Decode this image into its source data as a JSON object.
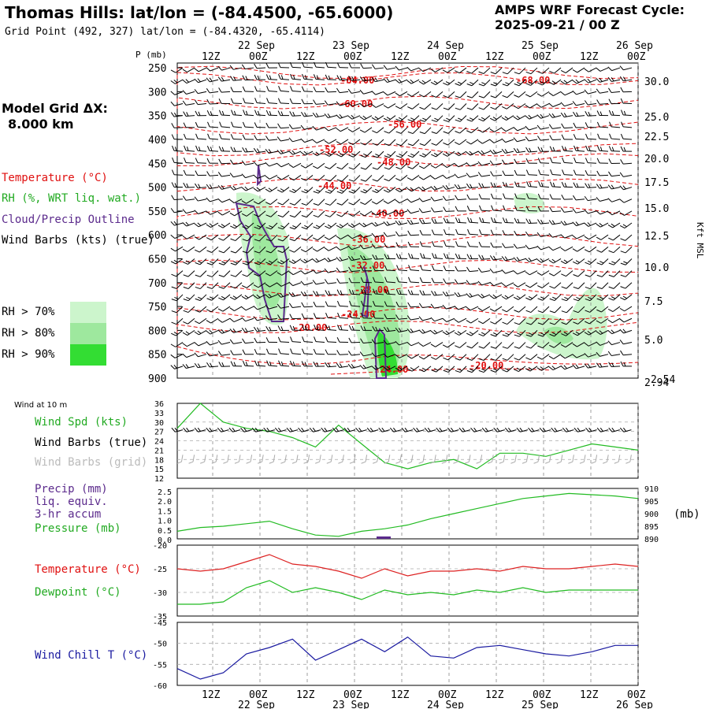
{
  "header": {
    "station_title": "Thomas Hills:  lat/lon = (-84.4500, -65.6000)",
    "grid_point": "Grid Point (492, 327) lat/lon = (-84.4320, -65.4114)",
    "cycle_label": "AMPS WRF Forecast Cycle:",
    "cycle_value": "2025-09-21 / 00  Z"
  },
  "model_grid": {
    "label": "Model Grid ΔX:",
    "value": "8.000 km"
  },
  "legend": {
    "temperature": "Temperature (°C)",
    "rh": "RH (%, WRT liq. wat.)",
    "cloud": "Cloud/Precip Outline",
    "wind_barbs": "Wind Barbs (kts) (true)",
    "rh70": "RH > 70%",
    "rh80": "RH > 80%",
    "rh90": "RH > 90%"
  },
  "colors": {
    "temp": "#e01010",
    "rh70": "#ccf5cc",
    "rh80": "#9ee89e",
    "rh90": "#33dd33",
    "cloud": "#5b2a8c",
    "green": "#22bb22",
    "wind_chill": "#1a1aa0",
    "grid_barb": "#aaaaaa"
  },
  "time_axis": {
    "top_labels": [
      "12Z",
      "00Z",
      "12Z",
      "00Z",
      "12Z",
      "00Z",
      "12Z",
      "00Z",
      "12Z",
      "00Z"
    ],
    "day_labels": [
      "22 Sep",
      "23 Sep",
      "24 Sep",
      "25 Sep",
      "26 Sep"
    ]
  },
  "chart_data": [
    {
      "type": "contour",
      "name": "upper-air time-height cross section",
      "ylabel": "P (mb)",
      "right_label": "Kft MSL",
      "pressure_ticks": [
        250,
        300,
        350,
        400,
        450,
        500,
        550,
        600,
        650,
        700,
        750,
        800,
        850,
        900
      ],
      "kft_ticks": [
        "30.0",
        "25.0",
        "22.5",
        "20.0",
        "17.5",
        "15.0",
        "12.5",
        "10.0",
        "7.5",
        "5.0",
        "2.94"
      ],
      "temp_contours": [
        "-68.00",
        "-64.00",
        "-60.00",
        "-56.00",
        "-52.00",
        "-48.00",
        "-44.00",
        "-40.00",
        "-36.00",
        "-32.00",
        "-28.00",
        "-24.00",
        "-20.00",
        "-24.00",
        "-20.00"
      ]
    },
    {
      "type": "line",
      "name": "Wind at 10 m",
      "title": "Wind at 10 m",
      "series_labels": {
        "speed": "Wind Spd (kts)",
        "barbs_true": "Wind Barbs (true)",
        "barbs_grid": "Wind Barbs (grid)"
      },
      "y_ticks": [
        36,
        33,
        30,
        27,
        24,
        21,
        18,
        15,
        12
      ],
      "ylim": [
        12,
        36
      ],
      "x_hours": [
        0,
        6,
        12,
        18,
        24,
        30,
        36,
        42,
        48,
        54,
        60,
        66,
        72,
        78,
        84,
        90,
        96,
        102,
        108,
        114,
        120
      ],
      "wind_speed": [
        28,
        36,
        30,
        28,
        27,
        25,
        22,
        29,
        23,
        17,
        15,
        17,
        18,
        15,
        20,
        20,
        19,
        21,
        23,
        22,
        21
      ]
    },
    {
      "type": "line",
      "name": "Precip and pressure",
      "series_labels": {
        "precip": "Precip (mm)",
        "liq": "liq. equiv.",
        "accum": "3-hr accum",
        "pressure": "Pressure (mb)"
      },
      "right_unit": "(mb)",
      "precip_ticks": [
        "2.5",
        "2.0",
        "1.5",
        "1.0",
        "0.5",
        "0.0"
      ],
      "pressure_ticks": [
        910,
        905,
        900,
        895,
        890
      ],
      "ylim_pressure": [
        890,
        910
      ],
      "x_hours": [
        0,
        6,
        12,
        18,
        24,
        30,
        36,
        42,
        48,
        54,
        60,
        66,
        72,
        78,
        84,
        90,
        96,
        102,
        108,
        114,
        120
      ],
      "pressure": [
        893,
        894.5,
        895,
        896,
        897,
        894,
        891.5,
        891,
        893,
        894,
        895.5,
        898,
        900,
        902,
        904,
        906,
        907,
        908,
        907.5,
        907,
        906
      ]
    },
    {
      "type": "line",
      "name": "Temperature and dewpoint",
      "series_labels": {
        "temperature": "Temperature (°C)",
        "dewpoint": "Dewpoint (°C)"
      },
      "y_ticks": [
        "-20",
        "-25",
        "-30",
        "-35"
      ],
      "ylim": [
        -35,
        -20
      ],
      "x_hours": [
        0,
        6,
        12,
        18,
        24,
        30,
        36,
        42,
        48,
        54,
        60,
        66,
        72,
        78,
        84,
        90,
        96,
        102,
        108,
        114,
        120
      ],
      "temperature": [
        -25,
        -25.5,
        -25,
        -23.5,
        -22,
        -24,
        -24.5,
        -25.5,
        -27,
        -25,
        -26.5,
        -25.5,
        -25.5,
        -25,
        -25.5,
        -24.5,
        -25,
        -25,
        -24.5,
        -24,
        -24.5
      ],
      "dewpoint": [
        -32.5,
        -32.5,
        -32,
        -29,
        -27.5,
        -30,
        -29,
        -30,
        -31.5,
        -29.5,
        -30.5,
        -30,
        -30.5,
        -29.5,
        -30,
        -29,
        -30,
        -29.5,
        -29.5,
        -29.5,
        -29.5
      ]
    },
    {
      "type": "line",
      "name": "Wind chill",
      "series_labels": {
        "wind_chill": "Wind Chill T (°C)"
      },
      "y_ticks": [
        "-45",
        "-50",
        "-55",
        "-60"
      ],
      "ylim": [
        -60,
        -45
      ],
      "x_hours": [
        0,
        6,
        12,
        18,
        24,
        30,
        36,
        42,
        48,
        54,
        60,
        66,
        72,
        78,
        84,
        90,
        96,
        102,
        108,
        114,
        120
      ],
      "wind_chill": [
        -56,
        -58.5,
        -57,
        -52.5,
        -51,
        -49,
        -54,
        -51.5,
        -49,
        -52,
        -48.5,
        -53,
        -53.5,
        -51,
        -50.5,
        -51.5,
        -52.5,
        -53,
        -52,
        -50.5,
        -50.5
      ]
    }
  ]
}
